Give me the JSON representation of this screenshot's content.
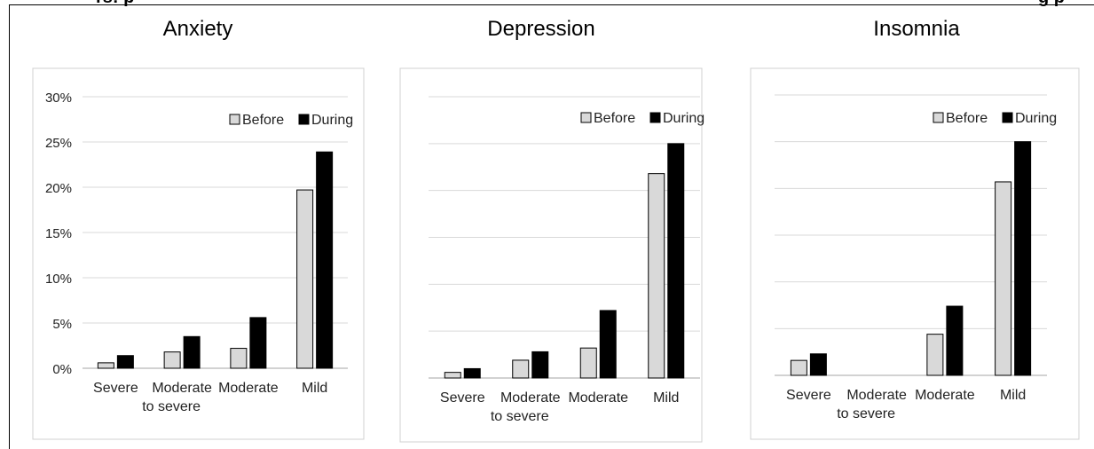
{
  "page": {
    "cut_title_left": "rs: p",
    "cut_title_right": "g p"
  },
  "chart_data": [
    {
      "type": "bar",
      "title": "Anxiety",
      "categories": [
        "Severe",
        "Moderate to severe",
        "Moderate",
        "Mild"
      ],
      "series": [
        {
          "name": "Before",
          "values": [
            0.6,
            1.8,
            2.2,
            19.7
          ],
          "color": "#d9d9d9"
        },
        {
          "name": "During",
          "values": [
            1.4,
            3.5,
            5.6,
            23.9
          ],
          "color": "#000000"
        }
      ],
      "ylim": [
        0,
        30
      ],
      "yticks": [
        "0%",
        "5%",
        "10%",
        "15%",
        "20%",
        "25%",
        "30%"
      ],
      "ytick_labels_shown": true,
      "grid": true,
      "legend": "top-right"
    },
    {
      "type": "bar",
      "title": "Depression",
      "categories": [
        "Severe",
        "Moderate to severe",
        "Moderate",
        "Mild"
      ],
      "series": [
        {
          "name": "Before",
          "values": [
            0.6,
            1.9,
            3.2,
            21.8
          ],
          "color": "#d9d9d9"
        },
        {
          "name": "During",
          "values": [
            1.0,
            2.8,
            7.2,
            25.0
          ],
          "color": "#000000"
        }
      ],
      "ylim": [
        0,
        30
      ],
      "yticks": [
        "0%",
        "5%",
        "10%",
        "15%",
        "20%",
        "25%",
        "30%"
      ],
      "ytick_labels_shown": false,
      "grid": true,
      "legend": "top-right"
    },
    {
      "type": "bar",
      "title": "Insomnia",
      "categories": [
        "Severe",
        "Moderate to severe",
        "Moderate",
        "Mild"
      ],
      "series": [
        {
          "name": "Before",
          "values": [
            1.6,
            0,
            4.4,
            20.7
          ],
          "color": "#d9d9d9"
        },
        {
          "name": "During",
          "values": [
            2.3,
            0,
            7.4,
            25.0
          ],
          "color": "#000000"
        }
      ],
      "ylim": [
        0,
        30
      ],
      "yticks": [
        "0%",
        "5%",
        "10%",
        "15%",
        "20%",
        "25%",
        "30%"
      ],
      "ytick_labels_shown": false,
      "grid": true,
      "legend": "top-right"
    }
  ]
}
